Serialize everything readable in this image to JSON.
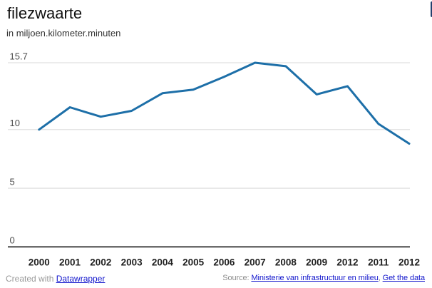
{
  "header": {
    "title": "filezwaarte",
    "subtitle": "in miljoen.kilometer.minuten"
  },
  "chart_data": {
    "type": "line",
    "title": "filezwaarte",
    "ylabel": "miljoen.kilometer.minuten",
    "xlabel": "",
    "categories": [
      "2000",
      "2001",
      "2002",
      "2003",
      "2004",
      "2005",
      "2006",
      "2007",
      "2008",
      "2009",
      "2012",
      "2011",
      "2012"
    ],
    "series": [
      {
        "name": "filezwaarte",
        "values": [
          10.0,
          11.9,
          11.1,
          11.6,
          13.1,
          13.4,
          14.5,
          15.7,
          15.4,
          13.0,
          13.7,
          10.5,
          8.8
        ]
      }
    ],
    "ylim": [
      0,
      15.7
    ],
    "yticks": [
      {
        "label": "15.7",
        "value": 15.7
      },
      {
        "label": "10",
        "value": 10
      },
      {
        "label": "5",
        "value": 5
      },
      {
        "label": "0",
        "value": 0
      }
    ],
    "grid": true,
    "legend": false,
    "line_color": "#1d6fa8"
  },
  "footer": {
    "left": {
      "prefix": "Created with ",
      "link_label": "Datawrapper"
    },
    "right": {
      "prefix": "Source: ",
      "source_link_label": "Ministerie van infrastructuur en milieu",
      "separator": ", ",
      "data_link_label": "Get the data"
    }
  },
  "colors": {
    "background": "#ffffff",
    "line": "#1d6fa8",
    "gridline": "#e0e0e0",
    "axis_line": "#1a1a1a",
    "y_tick_text": "#4d4d4d",
    "x_tick_text": "#1f1f1f",
    "title_text": "#111111",
    "subtitle_text": "#333333",
    "footer_text": "#999999",
    "link": "#1216cc",
    "edge_sliver": "#24406e"
  }
}
